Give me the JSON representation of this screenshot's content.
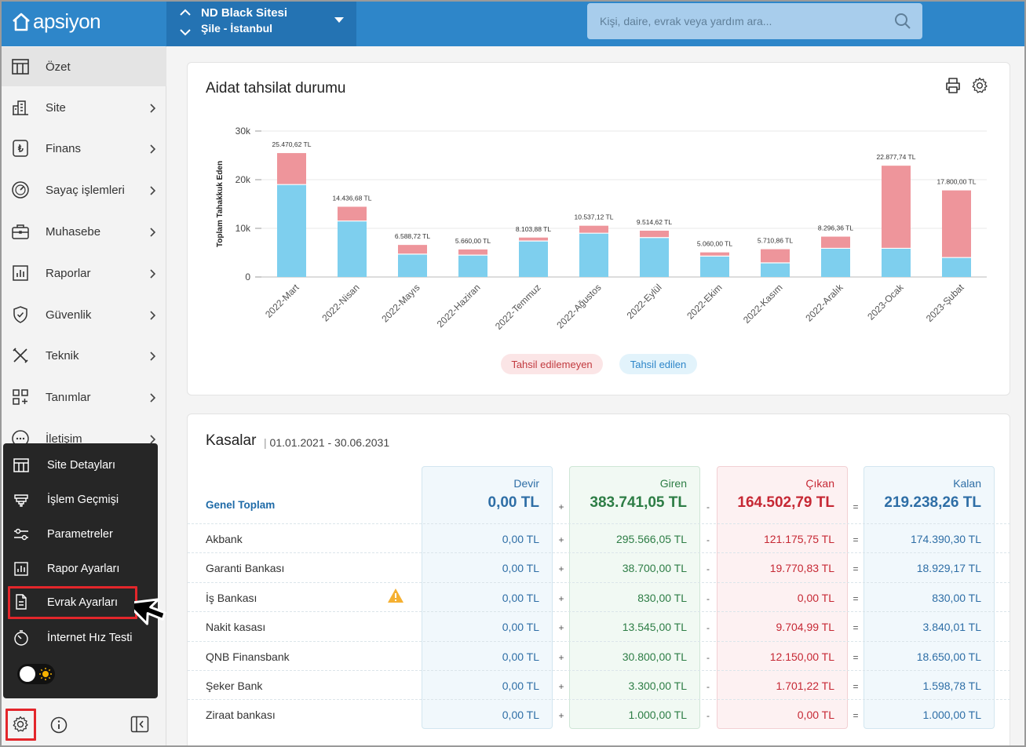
{
  "app": {
    "brand": "apsiyon"
  },
  "site_switch": {
    "name": "ND Black Sitesi",
    "location": "Şile - İstanbul"
  },
  "search": {
    "placeholder": "Kişi, daire, evrak veya yardım ara..."
  },
  "sidebar": {
    "items": [
      {
        "label": "Özet",
        "icon": "table-icon",
        "active": true
      },
      {
        "label": "Site",
        "icon": "building-icon"
      },
      {
        "label": "Finans",
        "icon": "lira-icon"
      },
      {
        "label": "Sayaç işlemleri",
        "icon": "gauge-icon"
      },
      {
        "label": "Muhasebe",
        "icon": "briefcase-icon"
      },
      {
        "label": "Raporlar",
        "icon": "report-icon"
      },
      {
        "label": "Güvenlik",
        "icon": "shield-icon"
      },
      {
        "label": "Teknik",
        "icon": "tools-icon"
      },
      {
        "label": "Tanımlar",
        "icon": "grid-plus-icon"
      },
      {
        "label": "İletişim",
        "icon": "chat-icon"
      }
    ]
  },
  "settings_menu": {
    "items": [
      {
        "label": "Site Detayları",
        "icon": "table-icon"
      },
      {
        "label": "İşlem Geçmişi",
        "icon": "history-icon"
      },
      {
        "label": "Parametreler",
        "icon": "sliders-icon"
      },
      {
        "label": "Rapor Ayarları",
        "icon": "report-icon"
      },
      {
        "label": "Evrak Ayarları",
        "icon": "document-icon",
        "highlighted": true
      },
      {
        "label": "İnternet Hız Testi",
        "icon": "speed-icon"
      }
    ]
  },
  "chart_card": {
    "title": "Aidat tahsilat durumu"
  },
  "chart_data": {
    "type": "bar",
    "stacked": true,
    "title": "Aidat tahsilat durumu",
    "ylabel": "Toplam Tahakkuk Eden",
    "xlabel": "",
    "ylim": [
      0,
      30000
    ],
    "yticks": [
      "0",
      "10k",
      "20k",
      "30k"
    ],
    "categories": [
      "2022-Mart",
      "2022-Nisan",
      "2022-Mayıs",
      "2022-Haziran",
      "2022-Temmuz",
      "2022-Ağustos",
      "2022-Eylül",
      "2022-Ekim",
      "2022-Kasım",
      "2022-Aralık",
      "2023-Ocak",
      "2023-Şubat"
    ],
    "totals": [
      25470.62,
      14436.68,
      6588.72,
      5660.0,
      8103.88,
      10537.12,
      9514.62,
      5060.0,
      5710.86,
      8296.36,
      22877.74,
      17800.0
    ],
    "total_labels": [
      "25.470,62 TL",
      "14.436,68 TL",
      "6.588,72 TL",
      "5.660,00 TL",
      "8.103,88 TL",
      "10.537,12 TL",
      "9.514,62 TL",
      "5.060,00 TL",
      "5.710,86 TL",
      "8.296,36 TL",
      "22.877,74 TL",
      "17.800,00 TL"
    ],
    "series": [
      {
        "name": "Tahsil edilen",
        "color": "#7ecfee",
        "values": [
          19000,
          11500,
          4700,
          4500,
          7400,
          9000,
          8100,
          4300,
          2900,
          5900,
          5900,
          4000
        ]
      },
      {
        "name": "Tahsil edilemeyen",
        "color": "#ee959b",
        "values": [
          6470.62,
          2936.68,
          1888.72,
          1160.0,
          703.88,
          1537.12,
          1414.62,
          760.0,
          2810.86,
          2396.36,
          16977.74,
          13800.0
        ]
      }
    ],
    "legend": [
      "Tahsil edilemeyen",
      "Tahsil edilen"
    ]
  },
  "kasalar": {
    "title": "Kasalar",
    "range": "01.01.2021 - 30.06.2031",
    "columns": {
      "devir": "Devir",
      "giren": "Giren",
      "cikan": "Çıkan",
      "kalan": "Kalan"
    },
    "total_label": "Genel Toplam",
    "totals": {
      "devir": "0,00 TL",
      "giren": "383.741,05 TL",
      "cikan": "164.502,79 TL",
      "kalan": "219.238,26 TL"
    },
    "ops": {
      "plus": "+",
      "minus": "-",
      "eq": "="
    },
    "rows": [
      {
        "name": "Akbank",
        "devir": "0,00 TL",
        "giren": "295.566,05 TL",
        "cikan": "121.175,75 TL",
        "kalan": "174.390,30 TL"
      },
      {
        "name": "Garanti Bankası",
        "devir": "0,00 TL",
        "giren": "38.700,00 TL",
        "cikan": "19.770,83 TL",
        "kalan": "18.929,17 TL"
      },
      {
        "name": "İş Bankası",
        "devir": "0,00 TL",
        "giren": "830,00 TL",
        "cikan": "0,00 TL",
        "kalan": "830,00 TL",
        "warning": true
      },
      {
        "name": "Nakit kasası",
        "devir": "0,00 TL",
        "giren": "13.545,00 TL",
        "cikan": "9.704,99 TL",
        "kalan": "3.840,01 TL"
      },
      {
        "name": "QNB Finansbank",
        "devir": "0,00 TL",
        "giren": "30.800,00 TL",
        "cikan": "12.150,00 TL",
        "kalan": "18.650,00 TL"
      },
      {
        "name": "Şeker Bank",
        "devir": "0,00 TL",
        "giren": "3.300,00 TL",
        "cikan": "1.701,22 TL",
        "kalan": "1.598,78 TL"
      },
      {
        "name": "Ziraat bankası",
        "devir": "0,00 TL",
        "giren": "1.000,00 TL",
        "cikan": "0,00 TL",
        "kalan": "1.000,00 TL"
      }
    ]
  },
  "colors": {
    "brand": "#2e86c9",
    "paid": "#7ecfee",
    "unpaid": "#ee959b",
    "highlight": "#e3262b"
  }
}
